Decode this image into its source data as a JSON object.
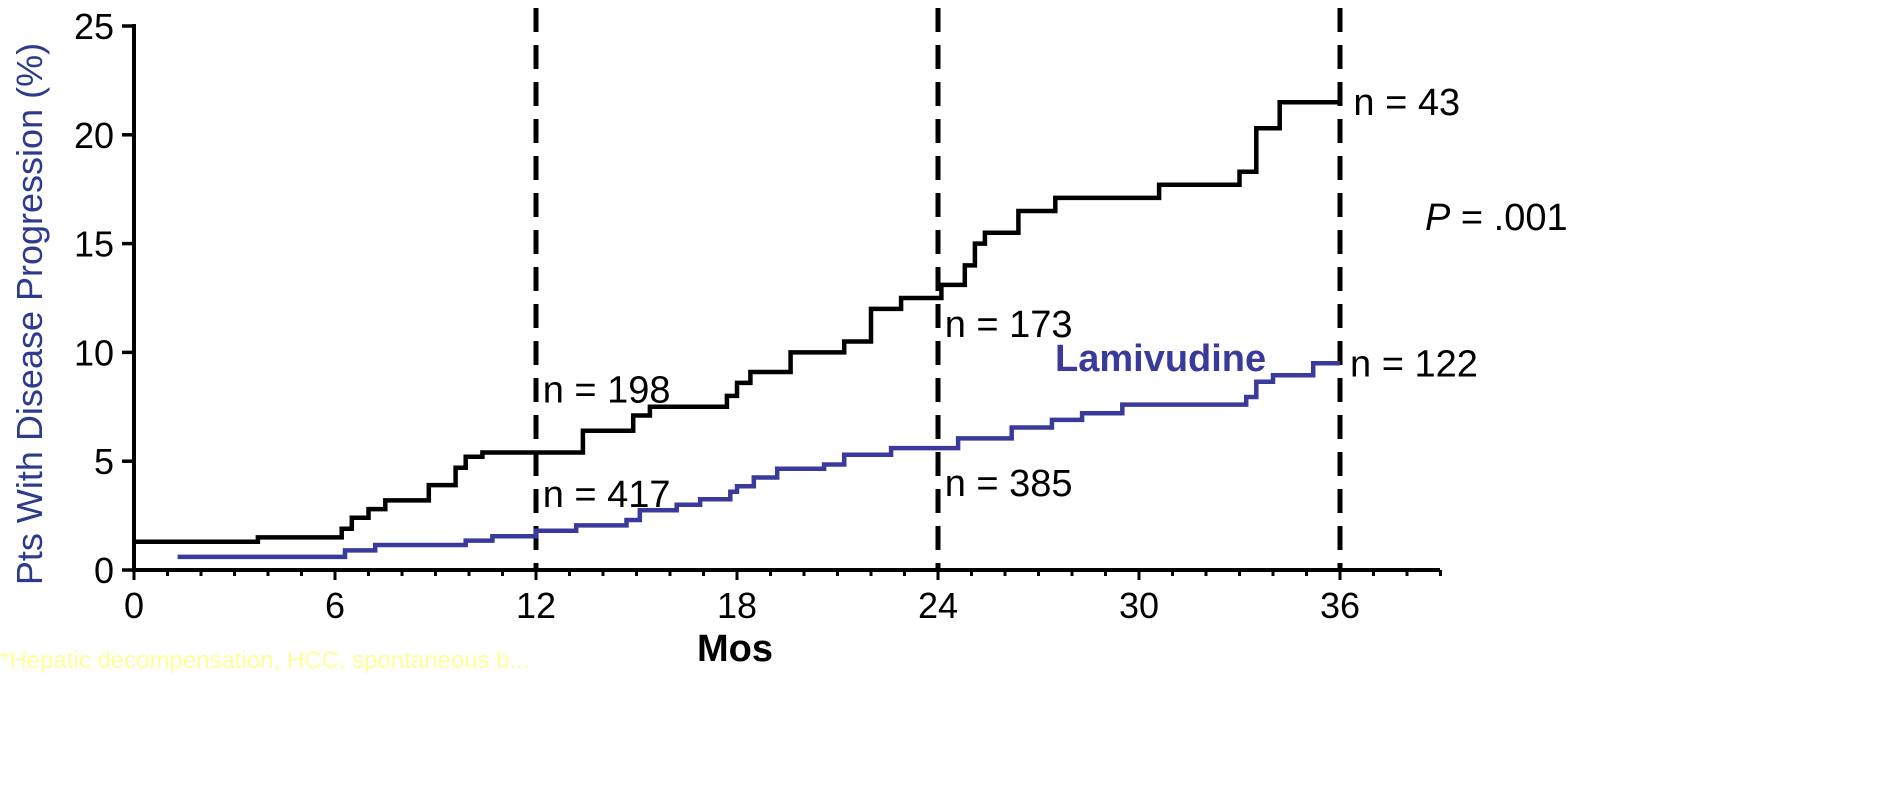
{
  "chart_data": {
    "type": "line",
    "xlabel": "Mos",
    "ylabel": "Pts With Disease Progression (%)",
    "xlim": [
      0,
      39
    ],
    "ylim": [
      0,
      25
    ],
    "x_ticks": [
      "0",
      "6",
      "12",
      "18",
      "24",
      "30",
      "36"
    ],
    "x_tick_values": [
      0,
      6,
      12,
      18,
      24,
      30,
      36
    ],
    "y_ticks": [
      "0",
      "5",
      "10",
      "15",
      "20",
      "25"
    ],
    "y_tick_values": [
      0,
      5,
      10,
      15,
      20,
      25
    ],
    "grid": false,
    "reference_lines_x": [
      12,
      24,
      36
    ],
    "p_value": {
      "italic": "P",
      "text": " = .001"
    },
    "annotations": [
      {
        "text": "n = 198",
        "x": 12.2,
        "y": 8.3
      },
      {
        "text": "n = 417",
        "x": 12.2,
        "y": 3.5
      },
      {
        "text": "n = 173",
        "x": 24.2,
        "y": 11.3
      },
      {
        "text": "n = 385",
        "x": 24.2,
        "y": 4.0
      },
      {
        "text": "n = 43",
        "x": 36.4,
        "y": 21.5
      },
      {
        "text": "n = 122",
        "x": 36.3,
        "y": 9.5
      }
    ],
    "footnote": "*Hepatic decompensation, HCC, spontaneous b...",
    "colors": {
      "axis": "#000000",
      "ylabel": "#2e3b8c",
      "lamivudine": "#3a3a9c",
      "placebo": "#000000",
      "footnote": "#ffff99"
    },
    "series": [
      {
        "color": "#000000",
        "points": [
          [
            0,
            1.3
          ],
          [
            3.7,
            1.3
          ],
          [
            3.7,
            1.5
          ],
          [
            6.2,
            1.5
          ],
          [
            6.2,
            1.9
          ],
          [
            6.5,
            1.9
          ],
          [
            6.5,
            2.4
          ],
          [
            7.0,
            2.4
          ],
          [
            7.0,
            2.8
          ],
          [
            7.5,
            2.8
          ],
          [
            7.5,
            3.2
          ],
          [
            8.8,
            3.2
          ],
          [
            8.8,
            3.9
          ],
          [
            9.6,
            3.9
          ],
          [
            9.6,
            4.7
          ],
          [
            9.9,
            4.7
          ],
          [
            9.9,
            5.2
          ],
          [
            10.4,
            5.2
          ],
          [
            10.4,
            5.4
          ],
          [
            13.4,
            5.4
          ],
          [
            13.4,
            6.4
          ],
          [
            14.9,
            6.4
          ],
          [
            14.9,
            7.1
          ],
          [
            15.4,
            7.1
          ],
          [
            15.4,
            7.5
          ],
          [
            17.7,
            7.5
          ],
          [
            17.7,
            8.0
          ],
          [
            18.0,
            8.0
          ],
          [
            18.0,
            8.6
          ],
          [
            18.4,
            8.6
          ],
          [
            18.4,
            9.1
          ],
          [
            19.6,
            9.1
          ],
          [
            19.6,
            10.0
          ],
          [
            21.2,
            10.0
          ],
          [
            21.2,
            10.5
          ],
          [
            22.0,
            10.5
          ],
          [
            22.0,
            12.0
          ],
          [
            22.9,
            12.0
          ],
          [
            22.9,
            12.5
          ],
          [
            24.1,
            12.5
          ],
          [
            24.1,
            13.1
          ],
          [
            24.8,
            13.1
          ],
          [
            24.8,
            14.0
          ],
          [
            25.1,
            14.0
          ],
          [
            25.1,
            15.0
          ],
          [
            25.4,
            15.0
          ],
          [
            25.4,
            15.5
          ],
          [
            26.4,
            15.5
          ],
          [
            26.4,
            16.5
          ],
          [
            27.5,
            16.5
          ],
          [
            27.5,
            17.1
          ],
          [
            30.6,
            17.1
          ],
          [
            30.6,
            17.7
          ],
          [
            33.0,
            17.7
          ],
          [
            33.0,
            18.3
          ],
          [
            33.5,
            18.3
          ],
          [
            33.5,
            20.3
          ],
          [
            34.2,
            20.3
          ],
          [
            34.2,
            21.5
          ],
          [
            36.0,
            21.5
          ]
        ]
      },
      {
        "name": "Lamivudine",
        "color": "#3a3a9c",
        "points": [
          [
            1.3,
            0.6
          ],
          [
            6.3,
            0.6
          ],
          [
            6.3,
            0.9
          ],
          [
            7.2,
            0.9
          ],
          [
            7.2,
            1.15
          ],
          [
            9.9,
            1.15
          ],
          [
            9.9,
            1.35
          ],
          [
            10.7,
            1.35
          ],
          [
            10.7,
            1.55
          ],
          [
            12.0,
            1.55
          ],
          [
            12.0,
            1.8
          ],
          [
            13.2,
            1.8
          ],
          [
            13.2,
            2.05
          ],
          [
            14.7,
            2.05
          ],
          [
            14.7,
            2.3
          ],
          [
            15.1,
            2.3
          ],
          [
            15.1,
            2.75
          ],
          [
            16.2,
            2.75
          ],
          [
            16.2,
            3.0
          ],
          [
            16.9,
            3.0
          ],
          [
            16.9,
            3.25
          ],
          [
            17.8,
            3.25
          ],
          [
            17.8,
            3.6
          ],
          [
            18.0,
            3.6
          ],
          [
            18.0,
            3.85
          ],
          [
            18.5,
            3.85
          ],
          [
            18.5,
            4.25
          ],
          [
            19.2,
            4.25
          ],
          [
            19.2,
            4.65
          ],
          [
            20.6,
            4.65
          ],
          [
            20.6,
            4.85
          ],
          [
            21.2,
            4.85
          ],
          [
            21.2,
            5.3
          ],
          [
            22.6,
            5.3
          ],
          [
            22.6,
            5.6
          ],
          [
            24.6,
            5.6
          ],
          [
            24.6,
            6.05
          ],
          [
            26.2,
            6.05
          ],
          [
            26.2,
            6.55
          ],
          [
            27.4,
            6.55
          ],
          [
            27.4,
            6.9
          ],
          [
            28.3,
            6.9
          ],
          [
            28.3,
            7.2
          ],
          [
            29.5,
            7.2
          ],
          [
            29.5,
            7.6
          ],
          [
            33.2,
            7.6
          ],
          [
            33.2,
            7.95
          ],
          [
            33.5,
            7.95
          ],
          [
            33.5,
            8.65
          ],
          [
            34.0,
            8.65
          ],
          [
            34.0,
            8.95
          ],
          [
            35.2,
            8.95
          ],
          [
            35.2,
            9.5
          ],
          [
            36.0,
            9.5
          ]
        ]
      }
    ]
  }
}
